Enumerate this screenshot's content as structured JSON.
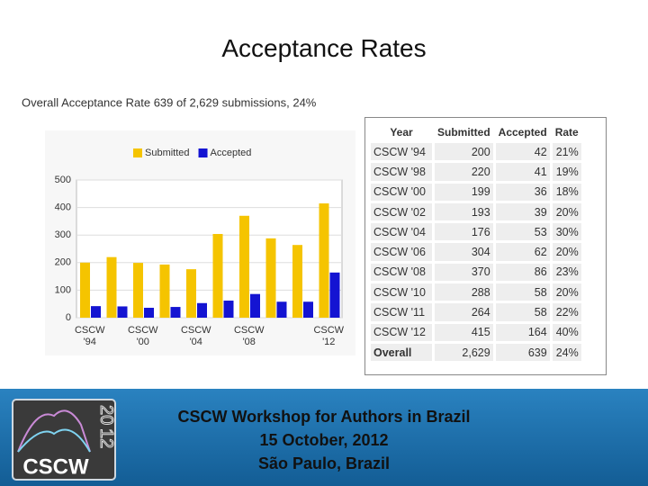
{
  "title": "Acceptance Rates",
  "chart_data": {
    "type": "bar",
    "subtitle": "Overall Acceptance Rate 639 of 2,629 submissions, 24%",
    "categories": [
      "CSCW '94",
      null,
      "CSCW '00",
      null,
      "CSCW '04",
      null,
      "CSCW '08",
      null,
      null,
      "CSCW '12"
    ],
    "series": [
      {
        "name": "Submitted",
        "color": "#f5c400",
        "values": [
          200,
          220,
          199,
          193,
          176,
          304,
          370,
          288,
          264,
          415
        ]
      },
      {
        "name": "Accepted",
        "color": "#1414d2",
        "values": [
          42,
          41,
          36,
          39,
          53,
          62,
          86,
          58,
          58,
          164
        ]
      }
    ],
    "ylim": [
      0,
      500
    ],
    "yticks": [
      0,
      100,
      200,
      300,
      400,
      500
    ],
    "grid": true,
    "legend": "top"
  },
  "table": {
    "header": [
      "Year",
      "Submitted",
      "Accepted",
      "Rate"
    ],
    "rows": [
      [
        "CSCW '94",
        200,
        42,
        "21%"
      ],
      [
        "CSCW '98",
        220,
        41,
        "19%"
      ],
      [
        "CSCW '00",
        199,
        36,
        "18%"
      ],
      [
        "CSCW '02",
        193,
        39,
        "20%"
      ],
      [
        "CSCW '04",
        176,
        53,
        "30%"
      ],
      [
        "CSCW '06",
        304,
        62,
        "20%"
      ],
      [
        "CSCW '08",
        370,
        86,
        "23%"
      ],
      [
        "CSCW '10",
        288,
        58,
        "20%"
      ],
      [
        "CSCW '11",
        264,
        58,
        "22%"
      ],
      [
        "CSCW '12",
        415,
        164,
        "40%"
      ]
    ],
    "overall": [
      "Overall",
      "2,629",
      "639",
      "24%"
    ]
  },
  "footer": {
    "lines": [
      "CSCW Workshop for Authors in Brazil",
      "15 October, 2012",
      "São Paulo, Brazil"
    ],
    "logo": {
      "text": "CSCW",
      "year": [
        "20",
        "12"
      ]
    }
  }
}
